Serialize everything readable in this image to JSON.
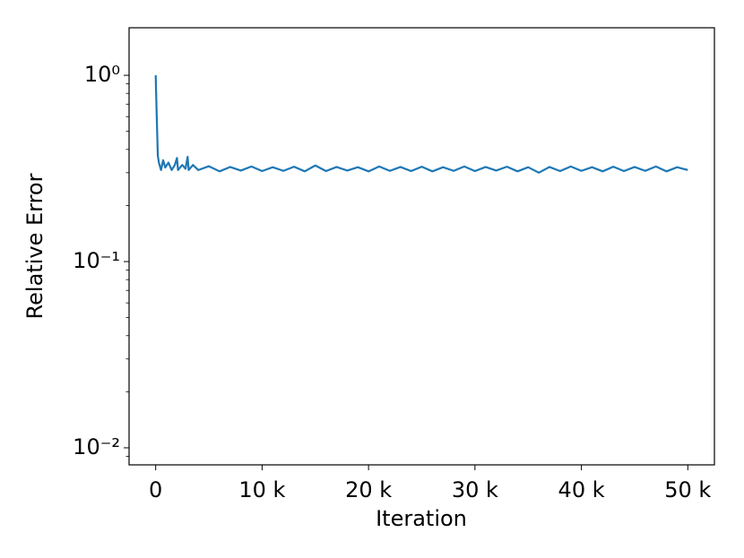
{
  "chart_data": {
    "type": "line",
    "xlabel": "Iteration",
    "ylabel": "Relative Error",
    "yscale": "log",
    "xlim": [
      -2500,
      52500
    ],
    "ylim": [
      0.0081,
      1.8
    ],
    "xticks": [
      0,
      {
        "value": 10000,
        "label": "10 k"
      },
      {
        "value": 20000,
        "label": "20 k"
      },
      {
        "value": 30000,
        "label": "30 k"
      },
      {
        "value": 40000,
        "label": "40 k"
      },
      {
        "value": 50000,
        "label": "50 k"
      }
    ],
    "yticks": [
      {
        "value": 0.01,
        "label": "10⁻²"
      },
      {
        "value": 0.1,
        "label": "10⁻¹"
      },
      {
        "value": 1,
        "label": "10⁰"
      }
    ],
    "yminorticks": [
      0.009,
      0.02,
      0.03,
      0.04,
      0.05,
      0.06,
      0.07,
      0.08,
      0.09,
      0.2,
      0.3,
      0.4,
      0.5,
      0.6,
      0.7,
      0.8,
      0.9
    ],
    "series": [
      {
        "color": "#1f77b4",
        "x": [
          0,
          100,
          200,
          300,
          500,
          700,
          900,
          1200,
          1500,
          1800,
          2000,
          2100,
          2500,
          2800,
          3000,
          3100,
          3500,
          4000,
          5000,
          6000,
          7000,
          8000,
          9000,
          10000,
          11000,
          12000,
          13000,
          14000,
          15000,
          16000,
          17000,
          18000,
          19000,
          20000,
          21000,
          22000,
          23000,
          24000,
          25000,
          26000,
          27000,
          28000,
          29000,
          30000,
          31000,
          32000,
          33000,
          34000,
          35000,
          36000,
          37000,
          38000,
          39000,
          40000,
          41000,
          42000,
          43000,
          44000,
          45000,
          46000,
          47000,
          48000,
          49000,
          50000
        ],
        "values": [
          1.0,
          0.6,
          0.37,
          0.34,
          0.31,
          0.35,
          0.32,
          0.34,
          0.31,
          0.33,
          0.36,
          0.31,
          0.33,
          0.315,
          0.365,
          0.31,
          0.33,
          0.31,
          0.325,
          0.305,
          0.322,
          0.308,
          0.324,
          0.306,
          0.321,
          0.307,
          0.323,
          0.305,
          0.328,
          0.306,
          0.322,
          0.308,
          0.321,
          0.305,
          0.324,
          0.307,
          0.322,
          0.306,
          0.323,
          0.305,
          0.321,
          0.307,
          0.324,
          0.306,
          0.322,
          0.308,
          0.323,
          0.305,
          0.321,
          0.3,
          0.322,
          0.306,
          0.324,
          0.307,
          0.321,
          0.305,
          0.323,
          0.306,
          0.322,
          0.307,
          0.324,
          0.305,
          0.321,
          0.31
        ]
      }
    ]
  }
}
